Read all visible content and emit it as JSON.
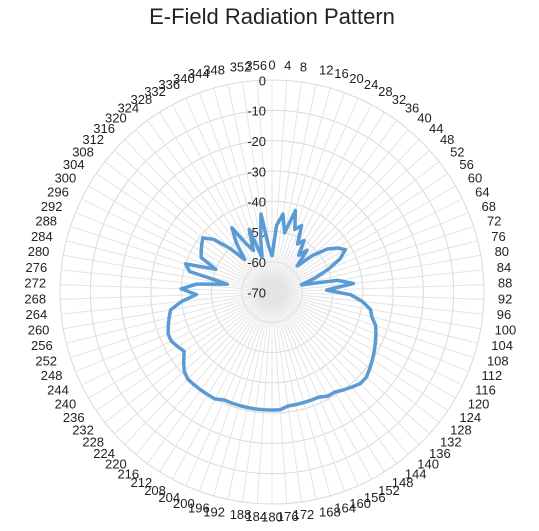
{
  "chart_data": {
    "type": "radar",
    "title": "E-Field Radiation Pattern",
    "categories": [
      "0",
      "4",
      "8",
      "12",
      "16",
      "20",
      "24",
      "28",
      "32",
      "36",
      "40",
      "44",
      "48",
      "52",
      "56",
      "60",
      "64",
      "68",
      "72",
      "76",
      "80",
      "84",
      "88",
      "92",
      "96",
      "100",
      "104",
      "108",
      "112",
      "116",
      "120",
      "124",
      "128",
      "132",
      "136",
      "140",
      "144",
      "148",
      "152",
      "156",
      "160",
      "164",
      "168",
      "172",
      "176",
      "180",
      "184",
      "188",
      "192",
      "196",
      "200",
      "204",
      "208",
      "212",
      "216",
      "220",
      "224",
      "228",
      "232",
      "236",
      "240",
      "244",
      "248",
      "252",
      "256",
      "260",
      "264",
      "268",
      "272",
      "276",
      "280",
      "284",
      "288",
      "292",
      "296",
      "300",
      "304",
      "308",
      "312",
      "316",
      "320",
      "324",
      "328",
      "332",
      "336",
      "340",
      "344",
      "348",
      "352",
      "356"
    ],
    "values": [
      -58,
      -48,
      -44,
      -50,
      -42,
      -48,
      -46,
      -52,
      -50,
      -55,
      -52,
      -58,
      -52,
      -47,
      -44,
      -42,
      -45,
      -50,
      -55,
      -60,
      -48,
      -43,
      -52,
      -44,
      -40,
      -37,
      -36,
      -34,
      -33,
      -32,
      -31,
      -30,
      -29,
      -28,
      -28,
      -29,
      -30,
      -31,
      -31,
      -32,
      -32,
      -32,
      -32,
      -32,
      -31,
      -31,
      -31,
      -31,
      -31,
      -31,
      -31,
      -31,
      -30,
      -30,
      -30,
      -30,
      -30,
      -31,
      -33,
      -35,
      -34,
      -33,
      -33,
      -34,
      -35,
      -36,
      -40,
      -45,
      -40,
      -45,
      -55,
      -42,
      -40,
      -50,
      -44,
      -43,
      -42,
      -41,
      -44,
      -50,
      -56,
      -50,
      -45,
      -52,
      -55,
      -48,
      -58,
      -52,
      -44,
      -55
    ],
    "color": "#5b9bd5",
    "ylim": [
      -70,
      0
    ],
    "yticks": [
      0,
      -10,
      -20,
      -30,
      -40,
      -50,
      -60,
      -70
    ],
    "grid": true
  }
}
